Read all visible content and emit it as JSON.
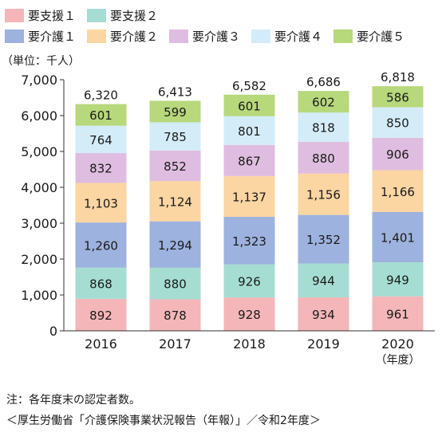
{
  "chart_data": {
    "type": "bar",
    "stacked": true,
    "categories": [
      "2016",
      "2017",
      "2018",
      "2019",
      "2020"
    ],
    "series": [
      {
        "name": "要支援１",
        "color": "#f4b6b8",
        "values": [
          892,
          878,
          928,
          934,
          961
        ]
      },
      {
        "name": "要支援２",
        "color": "#a6ddd2",
        "values": [
          868,
          880,
          926,
          944,
          949
        ]
      },
      {
        "name": "要介護１",
        "color": "#9db2de",
        "values": [
          1260,
          1294,
          1323,
          1352,
          1401
        ]
      },
      {
        "name": "要介護２",
        "color": "#fbd5a2",
        "values": [
          1103,
          1124,
          1137,
          1156,
          1166
        ]
      },
      {
        "name": "要介護３",
        "color": "#dfbde0",
        "values": [
          832,
          852,
          867,
          880,
          906
        ]
      },
      {
        "name": "要介護４",
        "color": "#d4ecf8",
        "values": [
          764,
          785,
          801,
          818,
          850
        ]
      },
      {
        "name": "要介護５",
        "color": "#b7d87b",
        "values": [
          601,
          599,
          601,
          602,
          586
        ]
      }
    ],
    "totals": [
      6320,
      6413,
      6582,
      6686,
      6818
    ],
    "ylim": [
      0,
      7000
    ],
    "yticks": [
      0,
      1000,
      2000,
      3000,
      4000,
      5000,
      6000,
      7000
    ],
    "ylabel": "（単位：千人）",
    "xlabel": "（年度）",
    "grid": false,
    "legend_position": "top-left"
  },
  "note": "注：各年度末の認定者数。",
  "source": "＜厚生労働省「介護保険事業状況報告（年報）」／令和2年度＞"
}
